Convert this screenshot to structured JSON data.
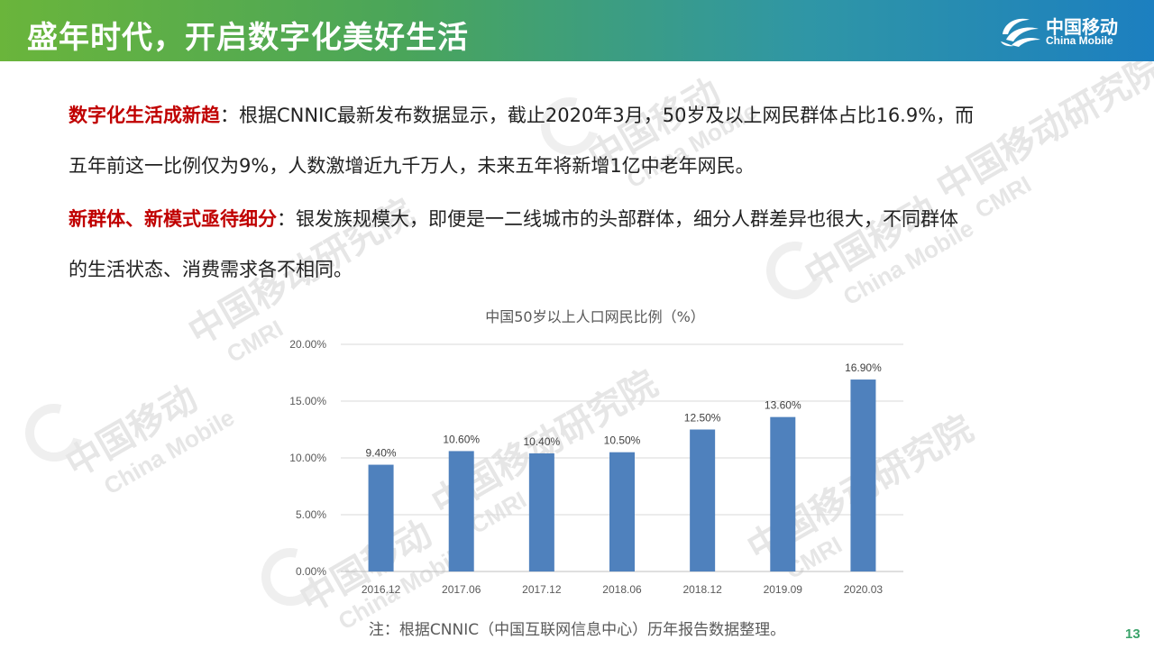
{
  "header": {
    "title": "盛年时代，开启数字化美好生活",
    "logo_cn": "中国移动",
    "logo_en": "China Mobile"
  },
  "watermark": {
    "cn": "中国移动研究院",
    "cn_short": "中国移动",
    "en": "China Mobile",
    "code": "CMRI"
  },
  "content": {
    "para1_highlight": "数字化生活成新趋",
    "para1_text": "：根据CNNIC最新发布数据显示，截止2020年3月，50岁及以上网民群体占比16.9%，而",
    "para1_cont": "五年前这一比例仅为9%，人数激增近九千万人，未来五年将新增1亿中老年网民。",
    "para2_highlight": "新群体、新模式亟待细分",
    "para2_text": "：银发族规模大，即便是一二线城市的头部群体，细分人群差异也很大，不同群体",
    "para2_cont": "的生活状态、消费需求各不相同。"
  },
  "chart_data": {
    "type": "bar",
    "title": "中国50岁以上人口网民比例（%）",
    "categories": [
      "2016.12",
      "2017.06",
      "2017.12",
      "2018.06",
      "2018.12",
      "2019.09",
      "2020.03"
    ],
    "values": [
      9.4,
      10.6,
      10.4,
      10.5,
      12.5,
      13.6,
      16.9
    ],
    "data_labels": [
      "9.40%",
      "10.60%",
      "10.40%",
      "10.50%",
      "12.50%",
      "13.60%",
      "16.90%"
    ],
    "y_ticks": [
      "0.00%",
      "5.00%",
      "10.00%",
      "15.00%",
      "20.00%"
    ],
    "ylim": [
      0,
      20
    ],
    "grid": true,
    "bar_color": "#4f81bd"
  },
  "footer": {
    "note": "注：根据CNNIC（中国互联网信息中心）历年报告数据整理。",
    "page": "13"
  }
}
